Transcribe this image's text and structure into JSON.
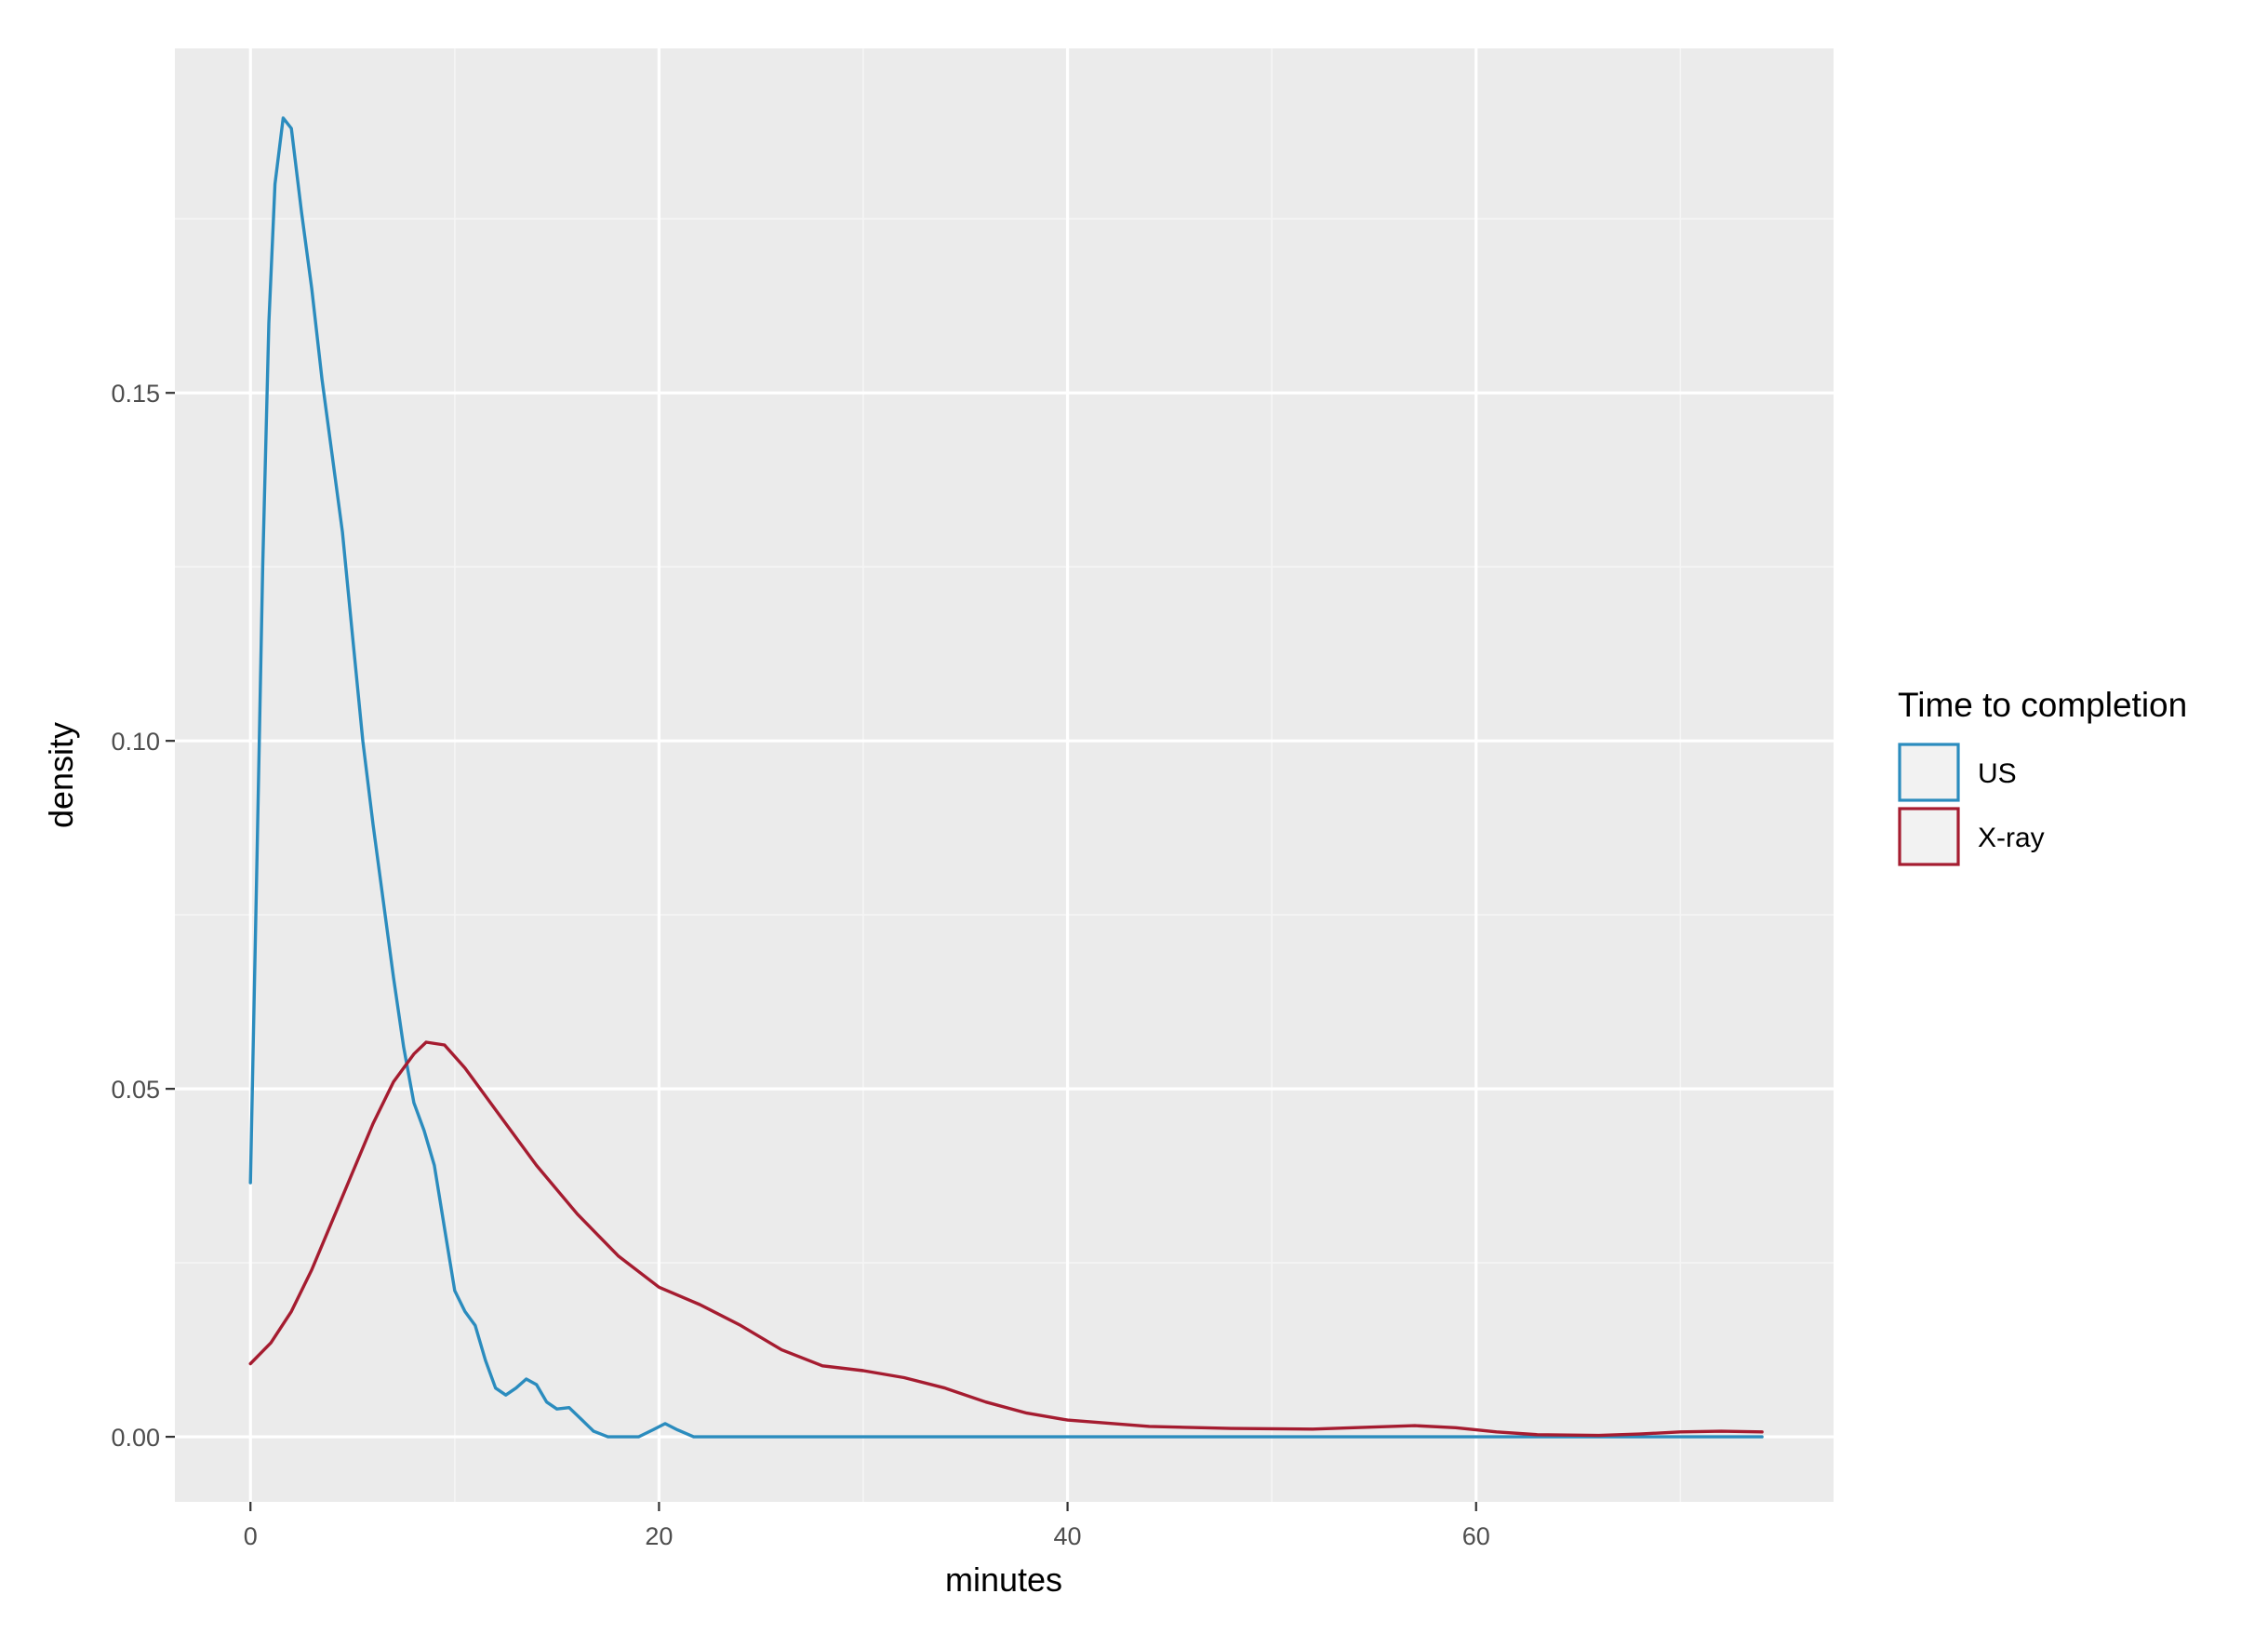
{
  "chart_data": {
    "type": "line",
    "title": "",
    "xlabel": "minutes",
    "ylabel": "density",
    "xlim": [
      -3.7,
      77.5
    ],
    "ylim": [
      -0.00935,
      0.1995
    ],
    "x_ticks": [
      0,
      20,
      40,
      60
    ],
    "x_tick_labels": [
      "0",
      "20",
      "40",
      "60"
    ],
    "y_ticks": [
      0.0,
      0.05,
      0.1,
      0.15
    ],
    "y_tick_labels": [
      "0.00",
      "0.05",
      "0.10",
      "0.15"
    ],
    "grid": true,
    "background": "#ebebeb",
    "legend": {
      "title": "Time to completion",
      "placement": "right"
    },
    "series": [
      {
        "name": "US",
        "color": "#2b8cbe",
        "points": [
          [
            0.0,
            0.0365
          ],
          [
            0.3,
            0.08
          ],
          [
            0.6,
            0.125
          ],
          [
            0.9,
            0.16
          ],
          [
            1.2,
            0.18
          ],
          [
            1.6,
            0.1895
          ],
          [
            2.0,
            0.188
          ],
          [
            2.5,
            0.176
          ],
          [
            3.0,
            0.165
          ],
          [
            3.5,
            0.152
          ],
          [
            4.0,
            0.141
          ],
          [
            4.5,
            0.13
          ],
          [
            5.0,
            0.115
          ],
          [
            5.5,
            0.1
          ],
          [
            6.0,
            0.088
          ],
          [
            6.5,
            0.077
          ],
          [
            7.0,
            0.066
          ],
          [
            7.5,
            0.056
          ],
          [
            8.0,
            0.048
          ],
          [
            8.5,
            0.044
          ],
          [
            9.0,
            0.039
          ],
          [
            9.5,
            0.03
          ],
          [
            10.0,
            0.021
          ],
          [
            10.5,
            0.018
          ],
          [
            11.0,
            0.016
          ],
          [
            11.5,
            0.011
          ],
          [
            12.0,
            0.007
          ],
          [
            12.5,
            0.006
          ],
          [
            13.0,
            0.007
          ],
          [
            13.5,
            0.0083
          ],
          [
            14.0,
            0.0075
          ],
          [
            14.5,
            0.005
          ],
          [
            15.0,
            0.004
          ],
          [
            15.6,
            0.0042
          ],
          [
            16.2,
            0.0025
          ],
          [
            16.8,
            0.0008
          ],
          [
            17.5,
            0.0
          ],
          [
            19.0,
            0.0
          ],
          [
            19.7,
            0.001
          ],
          [
            20.3,
            0.0019
          ],
          [
            20.9,
            0.001
          ],
          [
            21.7,
            0.0
          ],
          [
            30.0,
            0.0
          ],
          [
            40.0,
            0.0
          ],
          [
            50.0,
            0.0
          ],
          [
            60.0,
            0.0
          ],
          [
            70.0,
            0.0
          ],
          [
            74.0,
            0.0
          ]
        ]
      },
      {
        "name": "X-ray",
        "color": "#a51c30",
        "points": [
          [
            0.0,
            0.0105
          ],
          [
            1.0,
            0.0135
          ],
          [
            2.0,
            0.018
          ],
          [
            3.0,
            0.024
          ],
          [
            4.0,
            0.031
          ],
          [
            5.0,
            0.038
          ],
          [
            6.0,
            0.045
          ],
          [
            7.0,
            0.051
          ],
          [
            8.0,
            0.055
          ],
          [
            8.6,
            0.0567
          ],
          [
            9.5,
            0.0563
          ],
          [
            10.5,
            0.053
          ],
          [
            12.0,
            0.047
          ],
          [
            14.0,
            0.039
          ],
          [
            16.0,
            0.032
          ],
          [
            18.0,
            0.026
          ],
          [
            20.0,
            0.0215
          ],
          [
            22.0,
            0.019
          ],
          [
            24.0,
            0.016
          ],
          [
            26.0,
            0.0125
          ],
          [
            28.0,
            0.0102
          ],
          [
            30.0,
            0.0095
          ],
          [
            32.0,
            0.0085
          ],
          [
            34.0,
            0.007
          ],
          [
            36.0,
            0.005
          ],
          [
            38.0,
            0.0034
          ],
          [
            40.0,
            0.0024
          ],
          [
            44.0,
            0.0015
          ],
          [
            48.0,
            0.0012
          ],
          [
            52.0,
            0.0011
          ],
          [
            55.0,
            0.0014
          ],
          [
            57.0,
            0.0016
          ],
          [
            59.0,
            0.0013
          ],
          [
            61.0,
            0.0007
          ],
          [
            63.0,
            0.0003
          ],
          [
            66.0,
            0.0002
          ],
          [
            68.0,
            0.0004
          ],
          [
            70.0,
            0.0007
          ],
          [
            72.0,
            0.0008
          ],
          [
            74.0,
            0.0007
          ]
        ]
      }
    ]
  }
}
